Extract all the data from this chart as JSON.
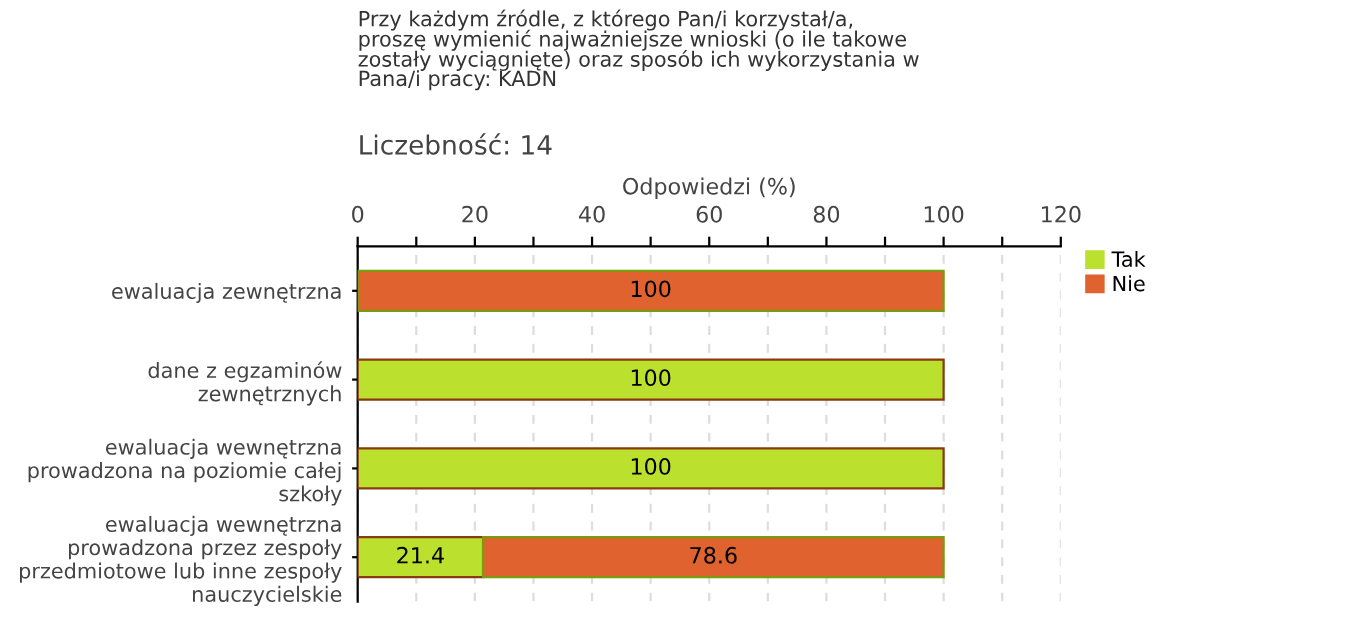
{
  "chart_data": {
    "type": "bar",
    "orientation": "horizontal",
    "stacked": true,
    "title": "Przy każdym źródle, z którego Pan/i korzystał/a,\nproszę wymienić najważniejsze wnioski (o ile takowe\nzostały wyciągnięte) oraz sposób ich wykorzystania w\nPana/i pracy: KADN",
    "subtitle": "Liczebność: 14",
    "xlabel": "Odpowiedzi (%)",
    "categories": [
      "ewaluacja zewnętrzna",
      "dane z egzaminów\nzewnętrznych",
      "ewaluacja wewnętrzna\nprowadzona na poziomie całej\nszkoły",
      "ewaluacja wewnętrzna\nprowadzona przez zespoły\nprzedmiotowe lub inne zespoły\nnauczycielskie"
    ],
    "series": [
      {
        "name": "Tak",
        "color": "#bce02e",
        "values": [
          null,
          100,
          100,
          21.4
        ]
      },
      {
        "name": "Nie",
        "color": "#e0622e",
        "values": [
          100,
          null,
          null,
          78.6
        ]
      }
    ],
    "xlim": [
      0,
      120
    ],
    "xticks": [
      0,
      {
        "value": 10,
        "label": null
      },
      20,
      {
        "value": 30,
        "label": null
      },
      40,
      {
        "value": 50,
        "label": null
      },
      60,
      {
        "value": 70,
        "label": null
      },
      80,
      {
        "value": 90,
        "label": null
      },
      100,
      {
        "value": 110,
        "label": null
      },
      120
    ],
    "grid": "x",
    "legend": "top right",
    "data_labels": true
  }
}
